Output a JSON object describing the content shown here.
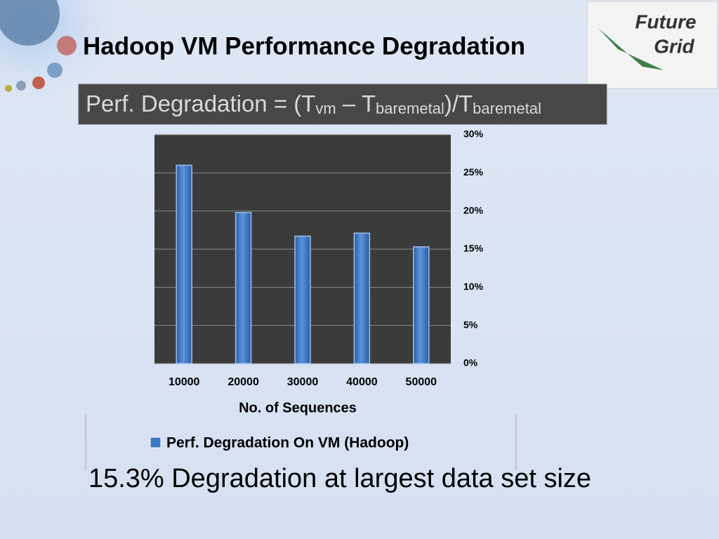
{
  "logo": {
    "line1": "Future",
    "line2": "Grid"
  },
  "chart_data": {
    "type": "bar",
    "title": "Hadoop VM Performance Degradation",
    "formula": {
      "parts": [
        "Perf. Degradation = (T",
        "vm",
        " – T",
        "baremetal",
        ")/T",
        "baremetal"
      ]
    },
    "categories": [
      "10000",
      "20000",
      "30000",
      "40000",
      "50000"
    ],
    "series": [
      {
        "name": "Perf. Degradation On VM (Hadoop)",
        "color": "#3f78c8",
        "values": [
          26,
          19.8,
          16.7,
          17.1,
          15.3
        ]
      }
    ],
    "x_label": "No. of Sequences",
    "ylim": [
      0,
      30
    ],
    "yticks": [
      {
        "value": 0,
        "label": "0%"
      },
      {
        "value": 5,
        "label": "5%"
      },
      {
        "value": 10,
        "label": "10%"
      },
      {
        "value": 15,
        "label": "15%"
      },
      {
        "value": 20,
        "label": "20%"
      },
      {
        "value": 25,
        "label": "25%"
      },
      {
        "value": 30,
        "label": "30%"
      }
    ],
    "grid": true,
    "annotation": "15.3% Degradation at largest data set size"
  }
}
